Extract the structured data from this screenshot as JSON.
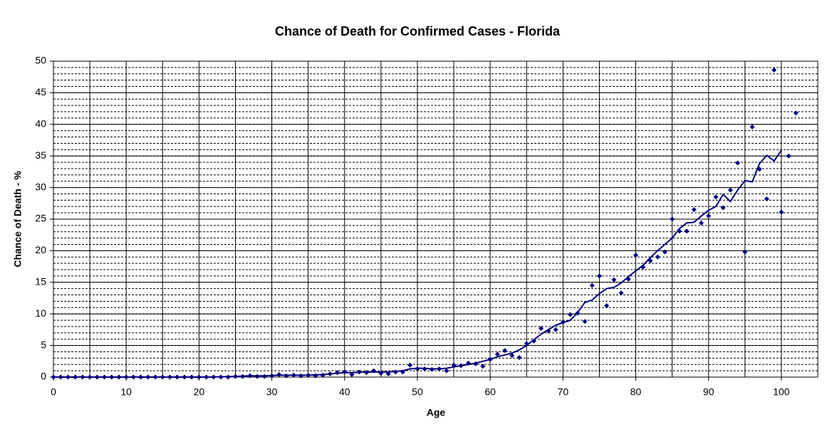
{
  "chart_data": {
    "type": "scatter",
    "title": "Chance of Death for Confirmed Cases - Florida",
    "x_label": "Age",
    "y_label": "Chance of Death - %",
    "xlim": [
      0,
      105
    ],
    "ylim": [
      0,
      50
    ],
    "xticks": [
      0,
      10,
      20,
      30,
      40,
      50,
      60,
      70,
      80,
      90,
      100
    ],
    "yticks": [
      0,
      5,
      10,
      15,
      20,
      25,
      30,
      35,
      40,
      45,
      50
    ],
    "grid": true,
    "xgrid_step": 5,
    "minor_grid_step": 1,
    "series": [
      {
        "mode": "markers",
        "color": "#000080",
        "x": [
          0,
          1,
          2,
          3,
          4,
          5,
          6,
          7,
          8,
          9,
          10,
          11,
          12,
          13,
          14,
          15,
          16,
          17,
          18,
          19,
          20,
          21,
          22,
          23,
          24,
          25,
          26,
          27,
          28,
          29,
          30,
          31,
          32,
          33,
          34,
          35,
          36,
          37,
          38,
          39,
          40,
          41,
          42,
          43,
          44,
          45,
          46,
          47,
          48,
          49,
          50,
          51,
          52,
          53,
          54,
          55,
          56,
          57,
          58,
          59,
          60,
          61,
          62,
          63,
          64,
          65,
          66,
          67,
          68,
          69,
          70,
          71,
          72,
          73,
          74,
          75,
          76,
          77,
          78,
          79,
          80,
          81,
          82,
          83,
          84,
          85,
          86,
          87,
          88,
          89,
          90,
          91,
          92,
          93,
          94,
          95,
          96,
          97,
          98,
          99,
          100,
          101,
          102
        ],
        "values": [
          0,
          0,
          0,
          0,
          0,
          0,
          0,
          0,
          0,
          0,
          0,
          0,
          0,
          0,
          0,
          0,
          0,
          0,
          0,
          0,
          0,
          0,
          0,
          0,
          0,
          0.1,
          0.1,
          0.2,
          0.1,
          0.1,
          0.2,
          0.4,
          0.2,
          0.3,
          0.2,
          0.3,
          0.2,
          0.3,
          0.5,
          0.7,
          0.8,
          0.4,
          0.8,
          0.7,
          1.0,
          0.6,
          0.5,
          0.8,
          0.8,
          1.9,
          1.3,
          1.3,
          1.2,
          1.3,
          1.0,
          1.9,
          1.8,
          2.2,
          2.1,
          1.7,
          2.8,
          3.6,
          4.2,
          3.4,
          3.1,
          5.3,
          5.7,
          7.7,
          7.3,
          7.5,
          8.7,
          9.9,
          10.1,
          8.8,
          14.5,
          16.0,
          11.3,
          15.4,
          13.3,
          15.5,
          19.3,
          17.4,
          18.4,
          19.0,
          19.8,
          25.0,
          23.1,
          23.1,
          26.5,
          24.4,
          25.5,
          28.5,
          26.8,
          29.6,
          33.9,
          19.8,
          39.6,
          32.9,
          28.2,
          48.6,
          26.1,
          35.0,
          41.8
        ]
      },
      {
        "mode": "line",
        "color": "#000080",
        "x": [
          0,
          1,
          2,
          3,
          4,
          5,
          6,
          7,
          8,
          9,
          10,
          11,
          12,
          13,
          14,
          15,
          16,
          17,
          18,
          19,
          20,
          21,
          22,
          23,
          24,
          25,
          26,
          27,
          28,
          29,
          30,
          31,
          32,
          33,
          34,
          35,
          36,
          37,
          38,
          39,
          40,
          41,
          42,
          43,
          44,
          45,
          46,
          47,
          48,
          49,
          50,
          51,
          52,
          53,
          54,
          55,
          56,
          57,
          58,
          59,
          60,
          61,
          62,
          63,
          64,
          65,
          66,
          67,
          68,
          69,
          70,
          71,
          72,
          73,
          74,
          75,
          76,
          77,
          78,
          79,
          80,
          81,
          82,
          83,
          84,
          85,
          86,
          87,
          88,
          89,
          90,
          91,
          92,
          93,
          94,
          95,
          96,
          97,
          98,
          99,
          100
        ],
        "values": [
          0,
          0,
          0,
          0,
          0,
          0,
          0,
          0,
          0,
          0,
          0,
          0,
          0,
          0,
          0,
          0,
          0,
          0,
          0,
          0,
          0,
          0,
          0,
          0.05,
          0.05,
          0.1,
          0.15,
          0.2,
          0.2,
          0.2,
          0.25,
          0.3,
          0.3,
          0.3,
          0.3,
          0.3,
          0.35,
          0.4,
          0.5,
          0.6,
          0.7,
          0.7,
          0.75,
          0.8,
          0.8,
          0.8,
          0.8,
          0.9,
          1.0,
          1.3,
          1.4,
          1.4,
          1.3,
          1.3,
          1.4,
          1.6,
          1.8,
          2.0,
          2.2,
          2.5,
          2.8,
          3.2,
          3.5,
          3.8,
          4.3,
          5.0,
          5.9,
          6.8,
          7.5,
          8.2,
          8.6,
          9.0,
          10.2,
          11.8,
          12.2,
          13.2,
          14.0,
          14.2,
          14.9,
          15.9,
          16.8,
          17.7,
          18.9,
          20.0,
          21.0,
          22.0,
          23.5,
          24.4,
          24.5,
          25.5,
          26.4,
          27.0,
          28.9,
          27.8,
          29.6,
          31.1,
          30.9,
          33.8,
          35.1,
          34.2,
          35.9
        ]
      }
    ]
  }
}
